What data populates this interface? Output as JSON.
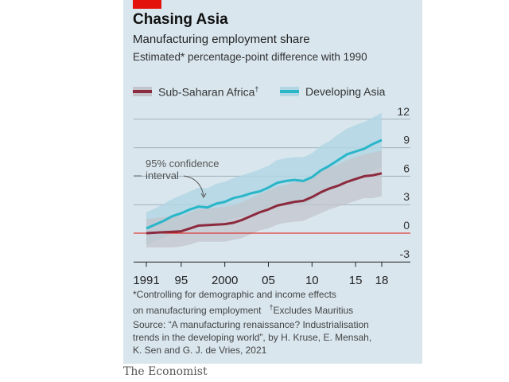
{
  "brand_color": "#e3120b",
  "title": "Chasing Asia",
  "subtitle": "Manufacturing employment share",
  "subtitle2": "Estimated* percentage-point difference with 1990",
  "annotation": [
    "95% confidence",
    "interval"
  ],
  "footnote1": "*Controlling for demographic and income effects",
  "footnote2": "on manufacturing employment",
  "footnote3": "Excludes Mauritius",
  "source1": "Source: “A manufacturing renaissance? Industrialisation",
  "source2": "trends in the developing world”, by H. Kruse, E. Mensah,",
  "source3": "K. Sen and G. J. de Vries, 2021",
  "publisher": "The Economist",
  "chart_data": {
    "type": "line",
    "title": "Chasing Asia",
    "x": [
      1991,
      1992,
      1993,
      1994,
      1995,
      1996,
      1997,
      1998,
      1999,
      2000,
      2001,
      2002,
      2003,
      2004,
      2005,
      2006,
      2007,
      2008,
      2009,
      2010,
      2011,
      2012,
      2013,
      2014,
      2015,
      2016,
      2017,
      2018
    ],
    "xticks": [
      1991,
      1995,
      2000,
      2005,
      2010,
      2015,
      2018
    ],
    "xtick_labels": [
      "1991",
      "95",
      "2000",
      "05",
      "10",
      "15",
      "18"
    ],
    "ylim": [
      -3,
      12
    ],
    "yticks": [
      12,
      9,
      6,
      3,
      0,
      -3
    ],
    "ytick_labels": [
      "12",
      "9",
      "6",
      "3",
      "0",
      "-3"
    ],
    "y_axis_side": "right",
    "grid": true,
    "legend_position": "top",
    "series": [
      {
        "name": "Sub-Saharan Africa",
        "name_mark": "†",
        "color": "#8c2a3e",
        "band_color": "#c3c4cc",
        "values": [
          0,
          0.05,
          0.1,
          0.15,
          0.2,
          0.5,
          0.8,
          0.85,
          0.9,
          0.95,
          1.1,
          1.4,
          1.8,
          2.2,
          2.5,
          2.9,
          3.1,
          3.3,
          3.4,
          3.8,
          4.3,
          4.7,
          5.0,
          5.4,
          5.7,
          6.0,
          6.1,
          6.3
        ],
        "ci_upper": [
          1.5,
          1.6,
          1.7,
          1.8,
          1.8,
          2.2,
          2.5,
          2.6,
          2.7,
          2.8,
          2.9,
          3.3,
          3.7,
          4.1,
          4.5,
          4.9,
          5.1,
          5.4,
          5.5,
          5.9,
          6.5,
          6.9,
          7.2,
          7.7,
          8.0,
          8.3,
          8.5,
          8.7
        ],
        "ci_lower": [
          -1.5,
          -1.5,
          -1.5,
          -1.5,
          -1.4,
          -1.2,
          -0.9,
          -0.9,
          -0.9,
          -0.9,
          -0.7,
          -0.5,
          -0.1,
          0.3,
          0.5,
          0.9,
          1.1,
          1.2,
          1.3,
          1.7,
          2.1,
          2.5,
          2.8,
          3.1,
          3.4,
          3.7,
          3.7,
          3.9
        ]
      },
      {
        "name": "Developing Asia",
        "color": "#2ab6c9",
        "band_color": "#b2d6e3",
        "values": [
          0.5,
          0.9,
          1.3,
          1.8,
          2.1,
          2.5,
          2.8,
          2.7,
          3.1,
          3.3,
          3.7,
          3.9,
          4.2,
          4.4,
          4.8,
          5.3,
          5.5,
          5.6,
          5.5,
          5.9,
          6.6,
          7.1,
          7.7,
          8.3,
          8.6,
          8.9,
          9.4,
          9.8
        ],
        "ci_upper": [
          2.2,
          2.6,
          3.1,
          3.6,
          4.0,
          4.4,
          4.8,
          4.7,
          5.2,
          5.4,
          5.8,
          6.1,
          6.4,
          6.7,
          7.1,
          7.7,
          7.9,
          8.0,
          8.0,
          8.4,
          9.2,
          9.7,
          10.4,
          11.0,
          11.4,
          11.7,
          12.2,
          12.7
        ],
        "ci_lower": [
          -1.2,
          -0.8,
          -0.5,
          0.0,
          0.2,
          0.6,
          0.8,
          0.7,
          1.0,
          1.2,
          1.6,
          1.7,
          2.0,
          2.1,
          2.5,
          2.9,
          3.1,
          3.2,
          3.0,
          3.4,
          4.0,
          4.5,
          5.0,
          5.6,
          5.8,
          6.1,
          6.6,
          6.9
        ]
      }
    ]
  }
}
